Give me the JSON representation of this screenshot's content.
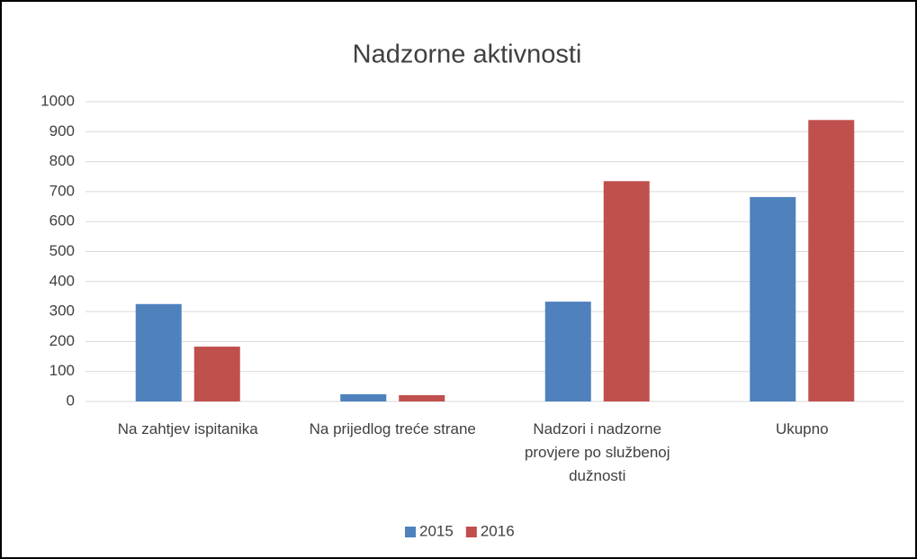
{
  "chart_data": {
    "type": "bar",
    "title": "Nadzorne aktivnosti",
    "categories": [
      "Na zahtjev ispitanika",
      "Na prijedlog treće strane",
      "Nadzori i nadzorne provjere po službenoj dužnosti",
      "Ukupno"
    ],
    "series": [
      {
        "name": "2015",
        "color": "#4f81bd",
        "values": [
          325,
          24,
          333,
          682
        ]
      },
      {
        "name": "2016",
        "color": "#c0504d",
        "values": [
          183,
          21,
          735,
          939
        ]
      }
    ],
    "ylim": [
      0,
      1000
    ],
    "yticks": [
      0,
      100,
      200,
      300,
      400,
      500,
      600,
      700,
      800,
      900,
      1000
    ],
    "grid": true,
    "legend": "bottom"
  }
}
